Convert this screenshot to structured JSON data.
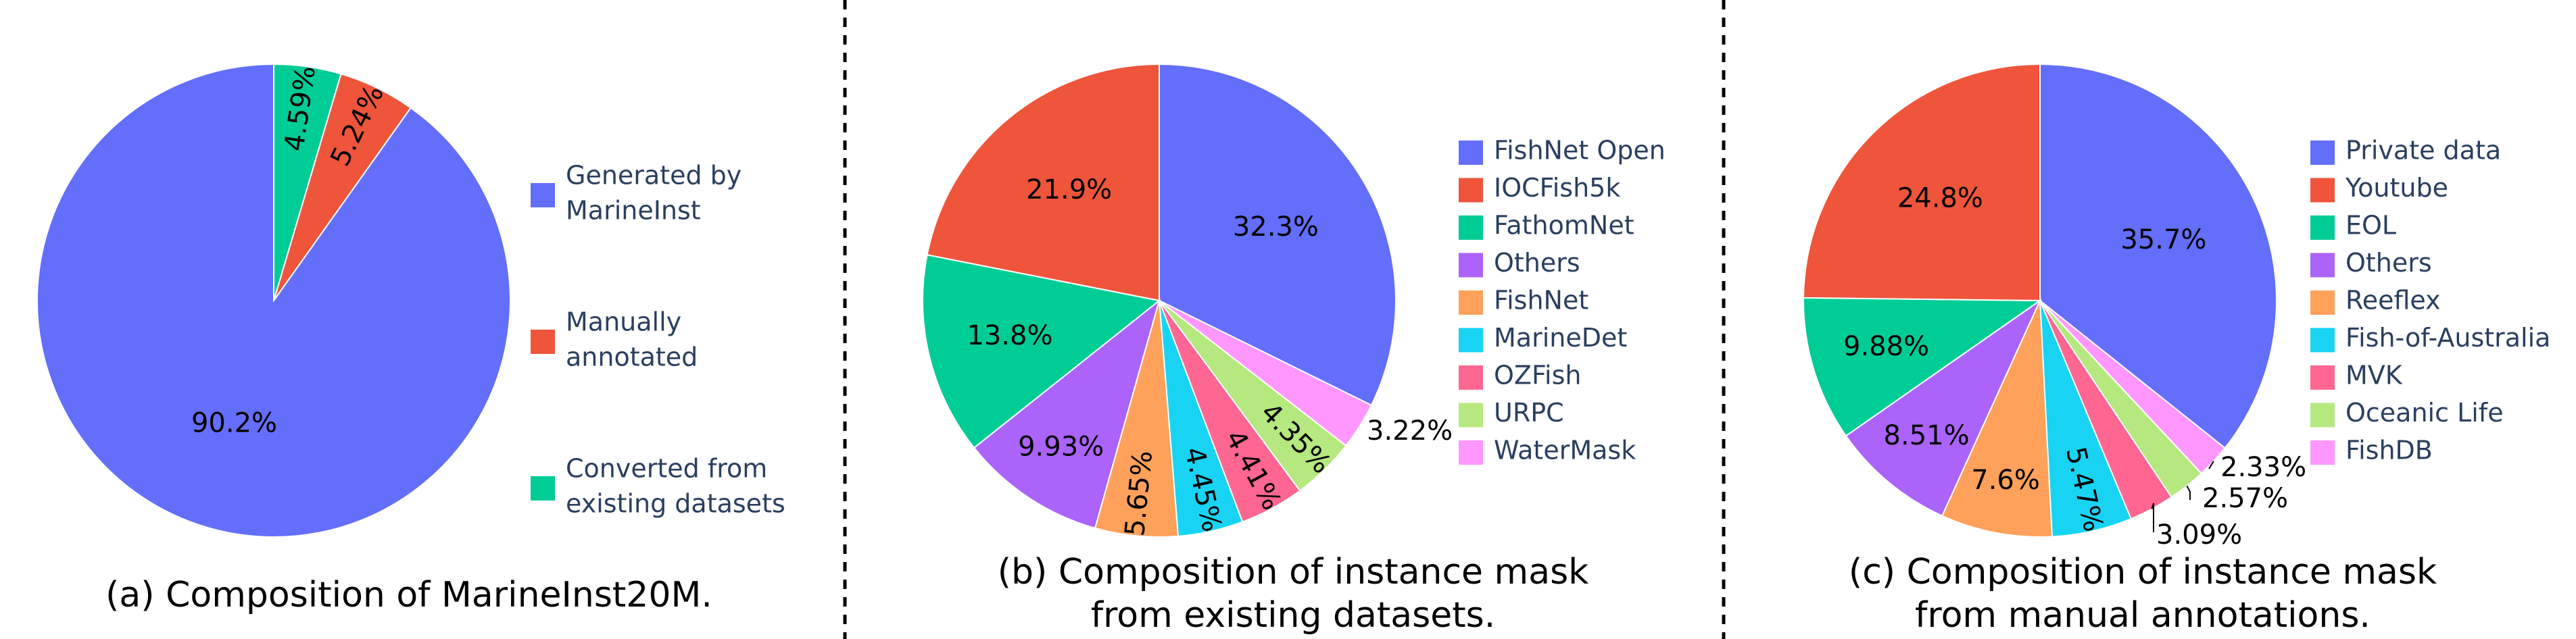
{
  "chart_data": [
    {
      "type": "pie",
      "caption": "(a) Composition of MarineInst20M.",
      "slices": [
        {
          "label": "Generated by MarineInst",
          "legend": [
            "Generated by",
            "MarineInst"
          ],
          "value": 90.2,
          "text": "90.2%",
          "color": "#636efa"
        },
        {
          "label": "Manually annotated",
          "legend": [
            "Manually",
            "annotated"
          ],
          "value": 5.24,
          "text": "5.24%",
          "color": "#ef553b"
        },
        {
          "label": "Converted from existing datasets",
          "legend": [
            "Converted from",
            "existing datasets"
          ],
          "value": 4.59,
          "text": "4.59%",
          "color": "#00cc96"
        }
      ]
    },
    {
      "type": "pie",
      "caption": [
        "(b) Composition of instance mask",
        "from existing datasets."
      ],
      "slices": [
        {
          "label": "FishNet Open",
          "value": 32.3,
          "text": "32.3%",
          "color": "#636efa"
        },
        {
          "label": "WaterMask",
          "value": 3.22,
          "text": "3.22%",
          "color": "#ff97ff"
        },
        {
          "label": "URPC",
          "value": 4.35,
          "text": "4.35%",
          "color": "#b6e880"
        },
        {
          "label": "OZFish",
          "value": 4.41,
          "text": "4.41%",
          "color": "#ff6692"
        },
        {
          "label": "MarineDet",
          "value": 4.45,
          "text": "4.45%",
          "color": "#19d3f3"
        },
        {
          "label": "FishNet",
          "value": 5.65,
          "text": "5.65%",
          "color": "#ffa15a"
        },
        {
          "label": "Others",
          "value": 9.93,
          "text": "9.93%",
          "color": "#ab63fa"
        },
        {
          "label": "FathomNet",
          "value": 13.8,
          "text": "13.8%",
          "color": "#00cc96"
        },
        {
          "label": "IOCFish5k",
          "value": 21.9,
          "text": "21.9%",
          "color": "#ef553b"
        }
      ],
      "legend": [
        "FishNet Open",
        "IOCFish5k",
        "FathomNet",
        "Others",
        "FishNet",
        "MarineDet",
        "OZFish",
        "URPC",
        "WaterMask"
      ]
    },
    {
      "type": "pie",
      "caption": [
        "(c) Composition of instance mask",
        "from manual annotations."
      ],
      "slices": [
        {
          "label": "Private data",
          "value": 35.7,
          "text": "35.7%",
          "color": "#636efa"
        },
        {
          "label": "FishDB",
          "value": 2.33,
          "text": "2.33%",
          "color": "#ff97ff"
        },
        {
          "label": "Oceanic Life",
          "value": 2.57,
          "text": "2.57%",
          "color": "#b6e880"
        },
        {
          "label": "MVK",
          "value": 3.09,
          "text": "3.09%",
          "color": "#ff6692"
        },
        {
          "label": "Fish-of-Australia",
          "value": 5.47,
          "text": "5.47%",
          "color": "#19d3f3"
        },
        {
          "label": "Reeflex",
          "value": 7.6,
          "text": "7.6%",
          "color": "#ffa15a"
        },
        {
          "label": "Others",
          "value": 8.51,
          "text": "8.51%",
          "color": "#ab63fa"
        },
        {
          "label": "EOL",
          "value": 9.88,
          "text": "9.88%",
          "color": "#00cc96"
        },
        {
          "label": "Youtube",
          "value": 24.8,
          "text": "24.8%",
          "color": "#ef553b"
        }
      ],
      "legend": [
        "Private data",
        "Youtube",
        "EOL",
        "Others",
        "Reeflex",
        "Fish-of-Australia",
        "MVK",
        "Oceanic Life",
        "FishDB"
      ]
    }
  ]
}
